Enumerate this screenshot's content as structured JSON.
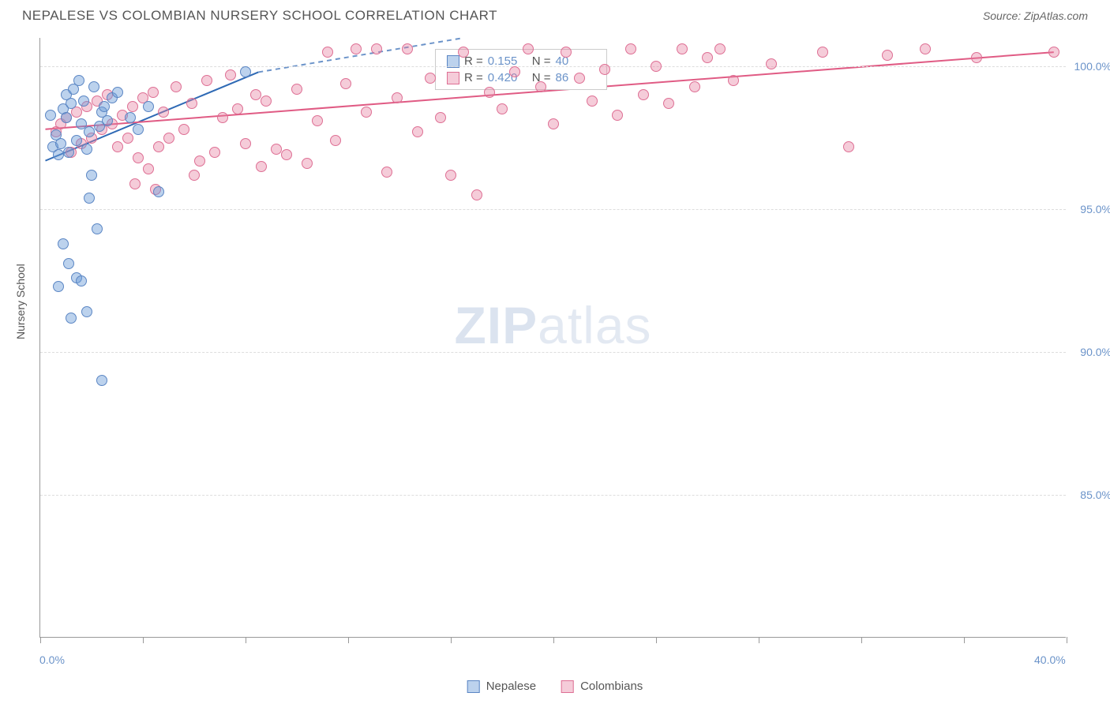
{
  "header": {
    "title": "NEPALESE VS COLOMBIAN NURSERY SCHOOL CORRELATION CHART",
    "source": "Source: ZipAtlas.com"
  },
  "watermark": {
    "zip": "ZIP",
    "atlas": "atlas"
  },
  "chart": {
    "type": "scatter",
    "background_color": "#ffffff",
    "grid_color": "#dddddd",
    "axis_color": "#999999",
    "xlim": [
      0,
      40
    ],
    "ylim": [
      80,
      101
    ],
    "xticks": [
      0,
      4,
      8,
      12,
      16,
      20,
      24,
      28,
      32,
      36,
      40
    ],
    "xtick_labels": {
      "0": "0.0%",
      "40": "40.0%"
    },
    "yticks": [
      85,
      90,
      95,
      100
    ],
    "ytick_labels": {
      "85": "85.0%",
      "90": "90.0%",
      "95": "95.0%",
      "100": "100.0%"
    },
    "yaxis_label": "Nursery School",
    "point_radius": 7,
    "series": {
      "nepalese": {
        "label": "Nepalese",
        "fill": "rgba(107,156,216,0.45)",
        "stroke": "#5b86c4",
        "trend_color": "#2f6ab5",
        "trend_dash_color": "#6b93c9",
        "R": "0.155",
        "N": "40",
        "trend_solid": {
          "x1": 0.2,
          "y1": 96.7,
          "x2": 8.5,
          "y2": 99.8
        },
        "trend_dash": {
          "x1": 8.5,
          "y1": 99.8,
          "x2": 16.5,
          "y2": 101.0
        },
        "points": [
          [
            0.4,
            98.3
          ],
          [
            0.5,
            97.2
          ],
          [
            0.6,
            97.6
          ],
          [
            0.7,
            96.9
          ],
          [
            0.8,
            97.3
          ],
          [
            0.9,
            98.5
          ],
          [
            1.0,
            99.0
          ],
          [
            1.1,
            97.0
          ],
          [
            1.2,
            98.7
          ],
          [
            1.3,
            99.2
          ],
          [
            1.4,
            97.4
          ],
          [
            1.5,
            99.5
          ],
          [
            1.6,
            98.0
          ],
          [
            1.7,
            98.8
          ],
          [
            1.8,
            97.1
          ],
          [
            1.9,
            97.7
          ],
          [
            2.0,
            96.2
          ],
          [
            2.1,
            99.3
          ],
          [
            2.2,
            94.3
          ],
          [
            2.3,
            97.9
          ],
          [
            2.4,
            98.4
          ],
          [
            2.6,
            98.1
          ],
          [
            2.8,
            98.9
          ],
          [
            0.9,
            93.8
          ],
          [
            1.1,
            93.1
          ],
          [
            1.4,
            92.6
          ],
          [
            1.6,
            92.5
          ],
          [
            0.7,
            92.3
          ],
          [
            1.8,
            91.4
          ],
          [
            1.2,
            91.2
          ],
          [
            1.9,
            95.4
          ],
          [
            4.6,
            95.6
          ],
          [
            2.4,
            89.0
          ],
          [
            8.0,
            99.8
          ],
          [
            3.5,
            98.2
          ],
          [
            4.2,
            98.6
          ],
          [
            3.8,
            97.8
          ],
          [
            3.0,
            99.1
          ],
          [
            2.5,
            98.6
          ],
          [
            1.0,
            98.2
          ]
        ]
      },
      "colombians": {
        "label": "Colombians",
        "fill": "rgba(231,128,160,0.40)",
        "stroke": "#de6f94",
        "trend_color": "#e05b84",
        "R": "0.420",
        "N": "86",
        "trend_solid": {
          "x1": 0.2,
          "y1": 97.8,
          "x2": 39.5,
          "y2": 100.5
        },
        "points": [
          [
            0.6,
            97.7
          ],
          [
            0.8,
            98.0
          ],
          [
            1.0,
            98.2
          ],
          [
            1.2,
            97.0
          ],
          [
            1.4,
            98.4
          ],
          [
            1.6,
            97.3
          ],
          [
            1.8,
            98.6
          ],
          [
            2.0,
            97.5
          ],
          [
            2.2,
            98.8
          ],
          [
            2.4,
            97.8
          ],
          [
            2.6,
            99.0
          ],
          [
            2.8,
            98.0
          ],
          [
            3.0,
            97.2
          ],
          [
            3.2,
            98.3
          ],
          [
            3.4,
            97.5
          ],
          [
            3.6,
            98.6
          ],
          [
            3.8,
            96.8
          ],
          [
            4.0,
            98.9
          ],
          [
            4.2,
            96.4
          ],
          [
            4.4,
            99.1
          ],
          [
            4.6,
            97.2
          ],
          [
            4.8,
            98.4
          ],
          [
            5.0,
            97.5
          ],
          [
            5.3,
            99.3
          ],
          [
            5.6,
            97.8
          ],
          [
            5.9,
            98.7
          ],
          [
            6.2,
            96.7
          ],
          [
            6.5,
            99.5
          ],
          [
            6.8,
            97.0
          ],
          [
            7.1,
            98.2
          ],
          [
            7.4,
            99.7
          ],
          [
            7.7,
            98.5
          ],
          [
            8.0,
            97.3
          ],
          [
            8.4,
            99.0
          ],
          [
            8.8,
            98.8
          ],
          [
            9.2,
            97.1
          ],
          [
            9.6,
            96.9
          ],
          [
            10.0,
            99.2
          ],
          [
            10.4,
            96.6
          ],
          [
            10.8,
            98.1
          ],
          [
            11.2,
            100.5
          ],
          [
            11.5,
            97.4
          ],
          [
            11.9,
            99.4
          ],
          [
            12.3,
            100.6
          ],
          [
            12.7,
            98.4
          ],
          [
            13.1,
            100.6
          ],
          [
            13.5,
            96.3
          ],
          [
            13.9,
            98.9
          ],
          [
            14.3,
            100.6
          ],
          [
            14.7,
            97.7
          ],
          [
            15.2,
            99.6
          ],
          [
            15.6,
            98.2
          ],
          [
            16.0,
            96.2
          ],
          [
            16.5,
            100.5
          ],
          [
            17.0,
            95.5
          ],
          [
            17.5,
            99.1
          ],
          [
            18.0,
            98.5
          ],
          [
            18.5,
            99.8
          ],
          [
            19.0,
            100.6
          ],
          [
            19.5,
            99.3
          ],
          [
            20.0,
            98.0
          ],
          [
            20.5,
            100.5
          ],
          [
            21.0,
            99.6
          ],
          [
            21.5,
            98.8
          ],
          [
            22.0,
            99.9
          ],
          [
            22.5,
            98.3
          ],
          [
            23.0,
            100.6
          ],
          [
            23.5,
            99.0
          ],
          [
            24.0,
            100.0
          ],
          [
            24.5,
            98.7
          ],
          [
            25.0,
            100.6
          ],
          [
            25.5,
            99.3
          ],
          [
            26.0,
            100.3
          ],
          [
            26.5,
            100.6
          ],
          [
            27.0,
            99.5
          ],
          [
            28.5,
            100.1
          ],
          [
            30.5,
            100.5
          ],
          [
            31.5,
            97.2
          ],
          [
            33.0,
            100.4
          ],
          [
            34.5,
            100.6
          ],
          [
            36.5,
            100.3
          ],
          [
            39.5,
            100.5
          ],
          [
            8.6,
            96.5
          ],
          [
            6.0,
            96.2
          ],
          [
            4.5,
            95.7
          ],
          [
            3.7,
            95.9
          ]
        ]
      }
    },
    "legend_box": {
      "r_label": "R =",
      "n_label": "N ="
    },
    "bottom_legend": {
      "nepalese": "Nepalese",
      "colombians": "Colombians"
    }
  }
}
